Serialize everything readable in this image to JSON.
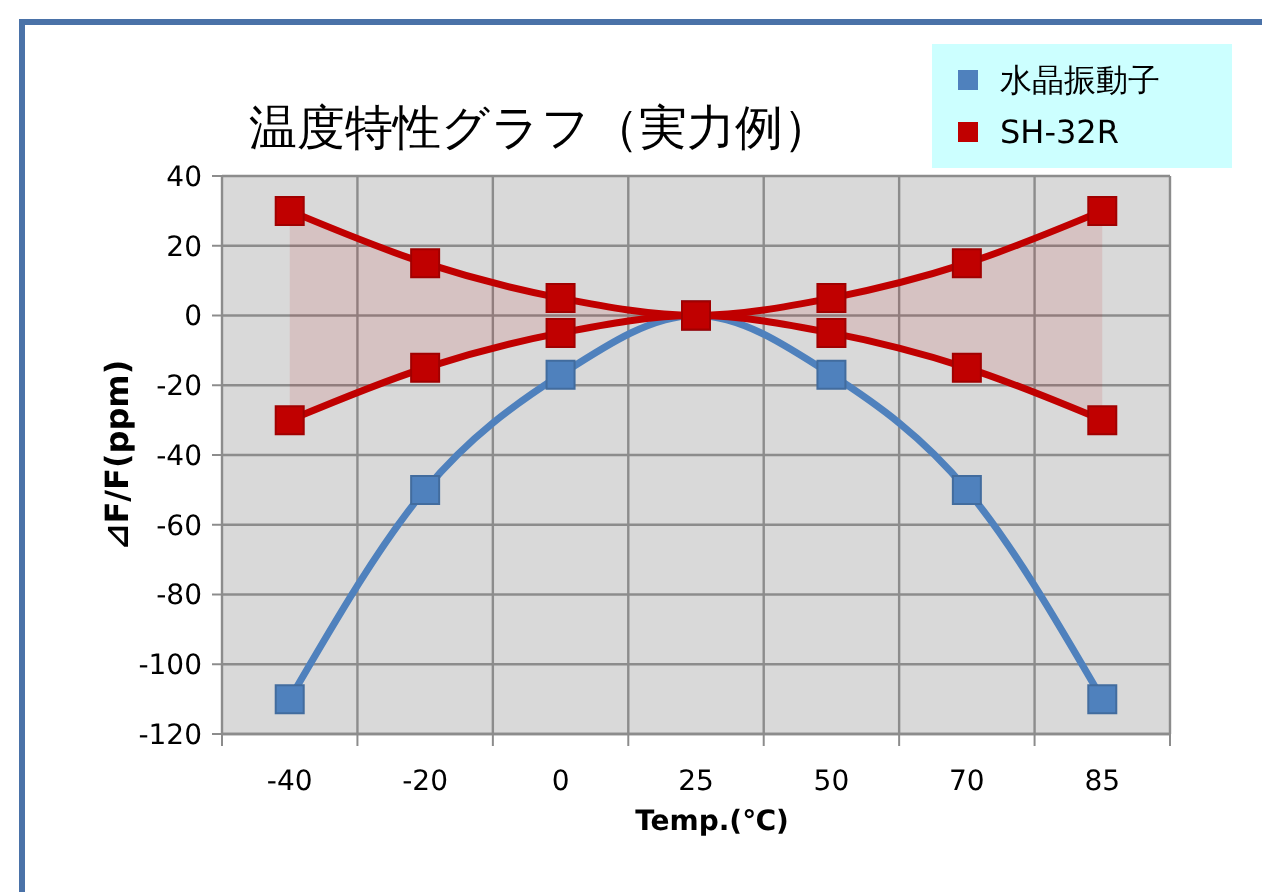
{
  "chart_data": {
    "type": "line",
    "title": "温度特性グラフ（実力例）",
    "xlabel": "Temp.(℃)",
    "ylabel": "⊿F/F(ppm)",
    "categories": [
      "-40",
      "-20",
      "0",
      "25",
      "50",
      "70",
      "85"
    ],
    "series": [
      {
        "name": "水晶振動子",
        "color": "#4f81bd",
        "values": [
          -110,
          -50,
          -17,
          0,
          -17,
          -50,
          -110
        ]
      },
      {
        "name": "SH-32R",
        "color": "#c00000",
        "values": [
          30,
          15,
          5,
          0,
          5,
          15,
          30
        ],
        "lower": [
          -30,
          -15,
          -5,
          0,
          -5,
          -15,
          -30
        ],
        "upper": [
          30,
          15,
          5,
          0,
          5,
          15,
          30
        ]
      },
      {
        "color": "#c00000",
        "values": [
          -30,
          -15,
          -5,
          0,
          -5,
          -15,
          -30
        ]
      }
    ],
    "ylim": [
      -120,
      40
    ],
    "yticks": [
      -120,
      -100,
      -80,
      -60,
      -40,
      -20,
      0,
      20,
      40
    ],
    "grid": true,
    "legend": "top right",
    "marker": "square",
    "line_style": "solid"
  }
}
